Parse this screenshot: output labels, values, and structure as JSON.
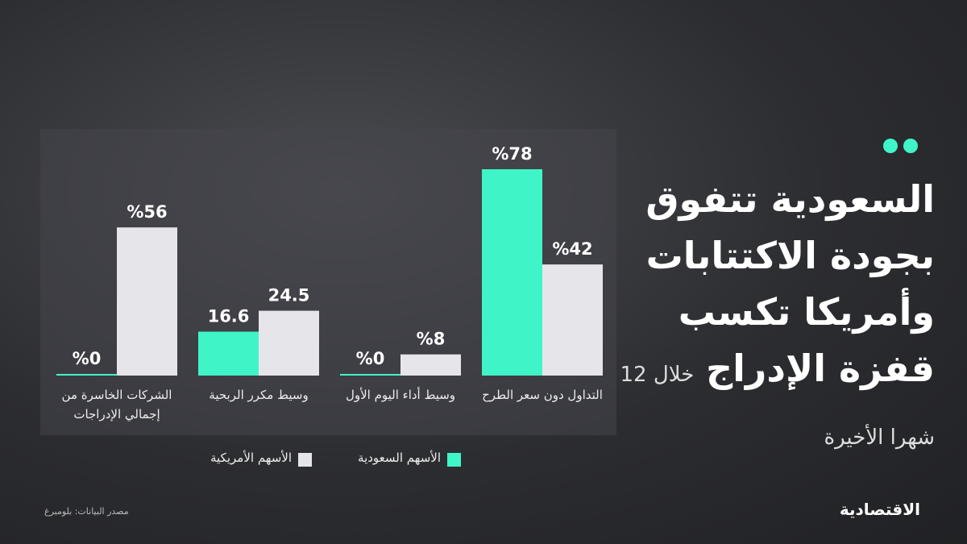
{
  "chart_data": {
    "type": "bar",
    "title": "السعودية تتفوق بجودة الاكتتابات وأمريكا تكسب قفزة الإدراج",
    "subtitle": "خلال 12 شهرا الأخيرة",
    "categories": [
      "التداول دون سعر الطرح",
      "وسيط أداء اليوم الأول",
      "وسيط مكرر الربحية",
      "الشركات الخاسرة من إجمالي الإدراجات"
    ],
    "series": [
      {
        "name": "الأسهم السعودية",
        "color": "#3ff5c8",
        "values": [
          78,
          0,
          16.6,
          0
        ],
        "value_labels": [
          "%78",
          "%0",
          "16.6",
          "%0"
        ]
      },
      {
        "name": "الأسهم الأمريكية",
        "color": "#e6e6ea",
        "values": [
          42,
          8,
          24.5,
          56
        ],
        "value_labels": [
          "%42",
          "%8",
          "24.5",
          "%56"
        ]
      }
    ],
    "source": "مصدر البيانات: بلومبرغ",
    "brand": "الاقتصادية"
  }
}
